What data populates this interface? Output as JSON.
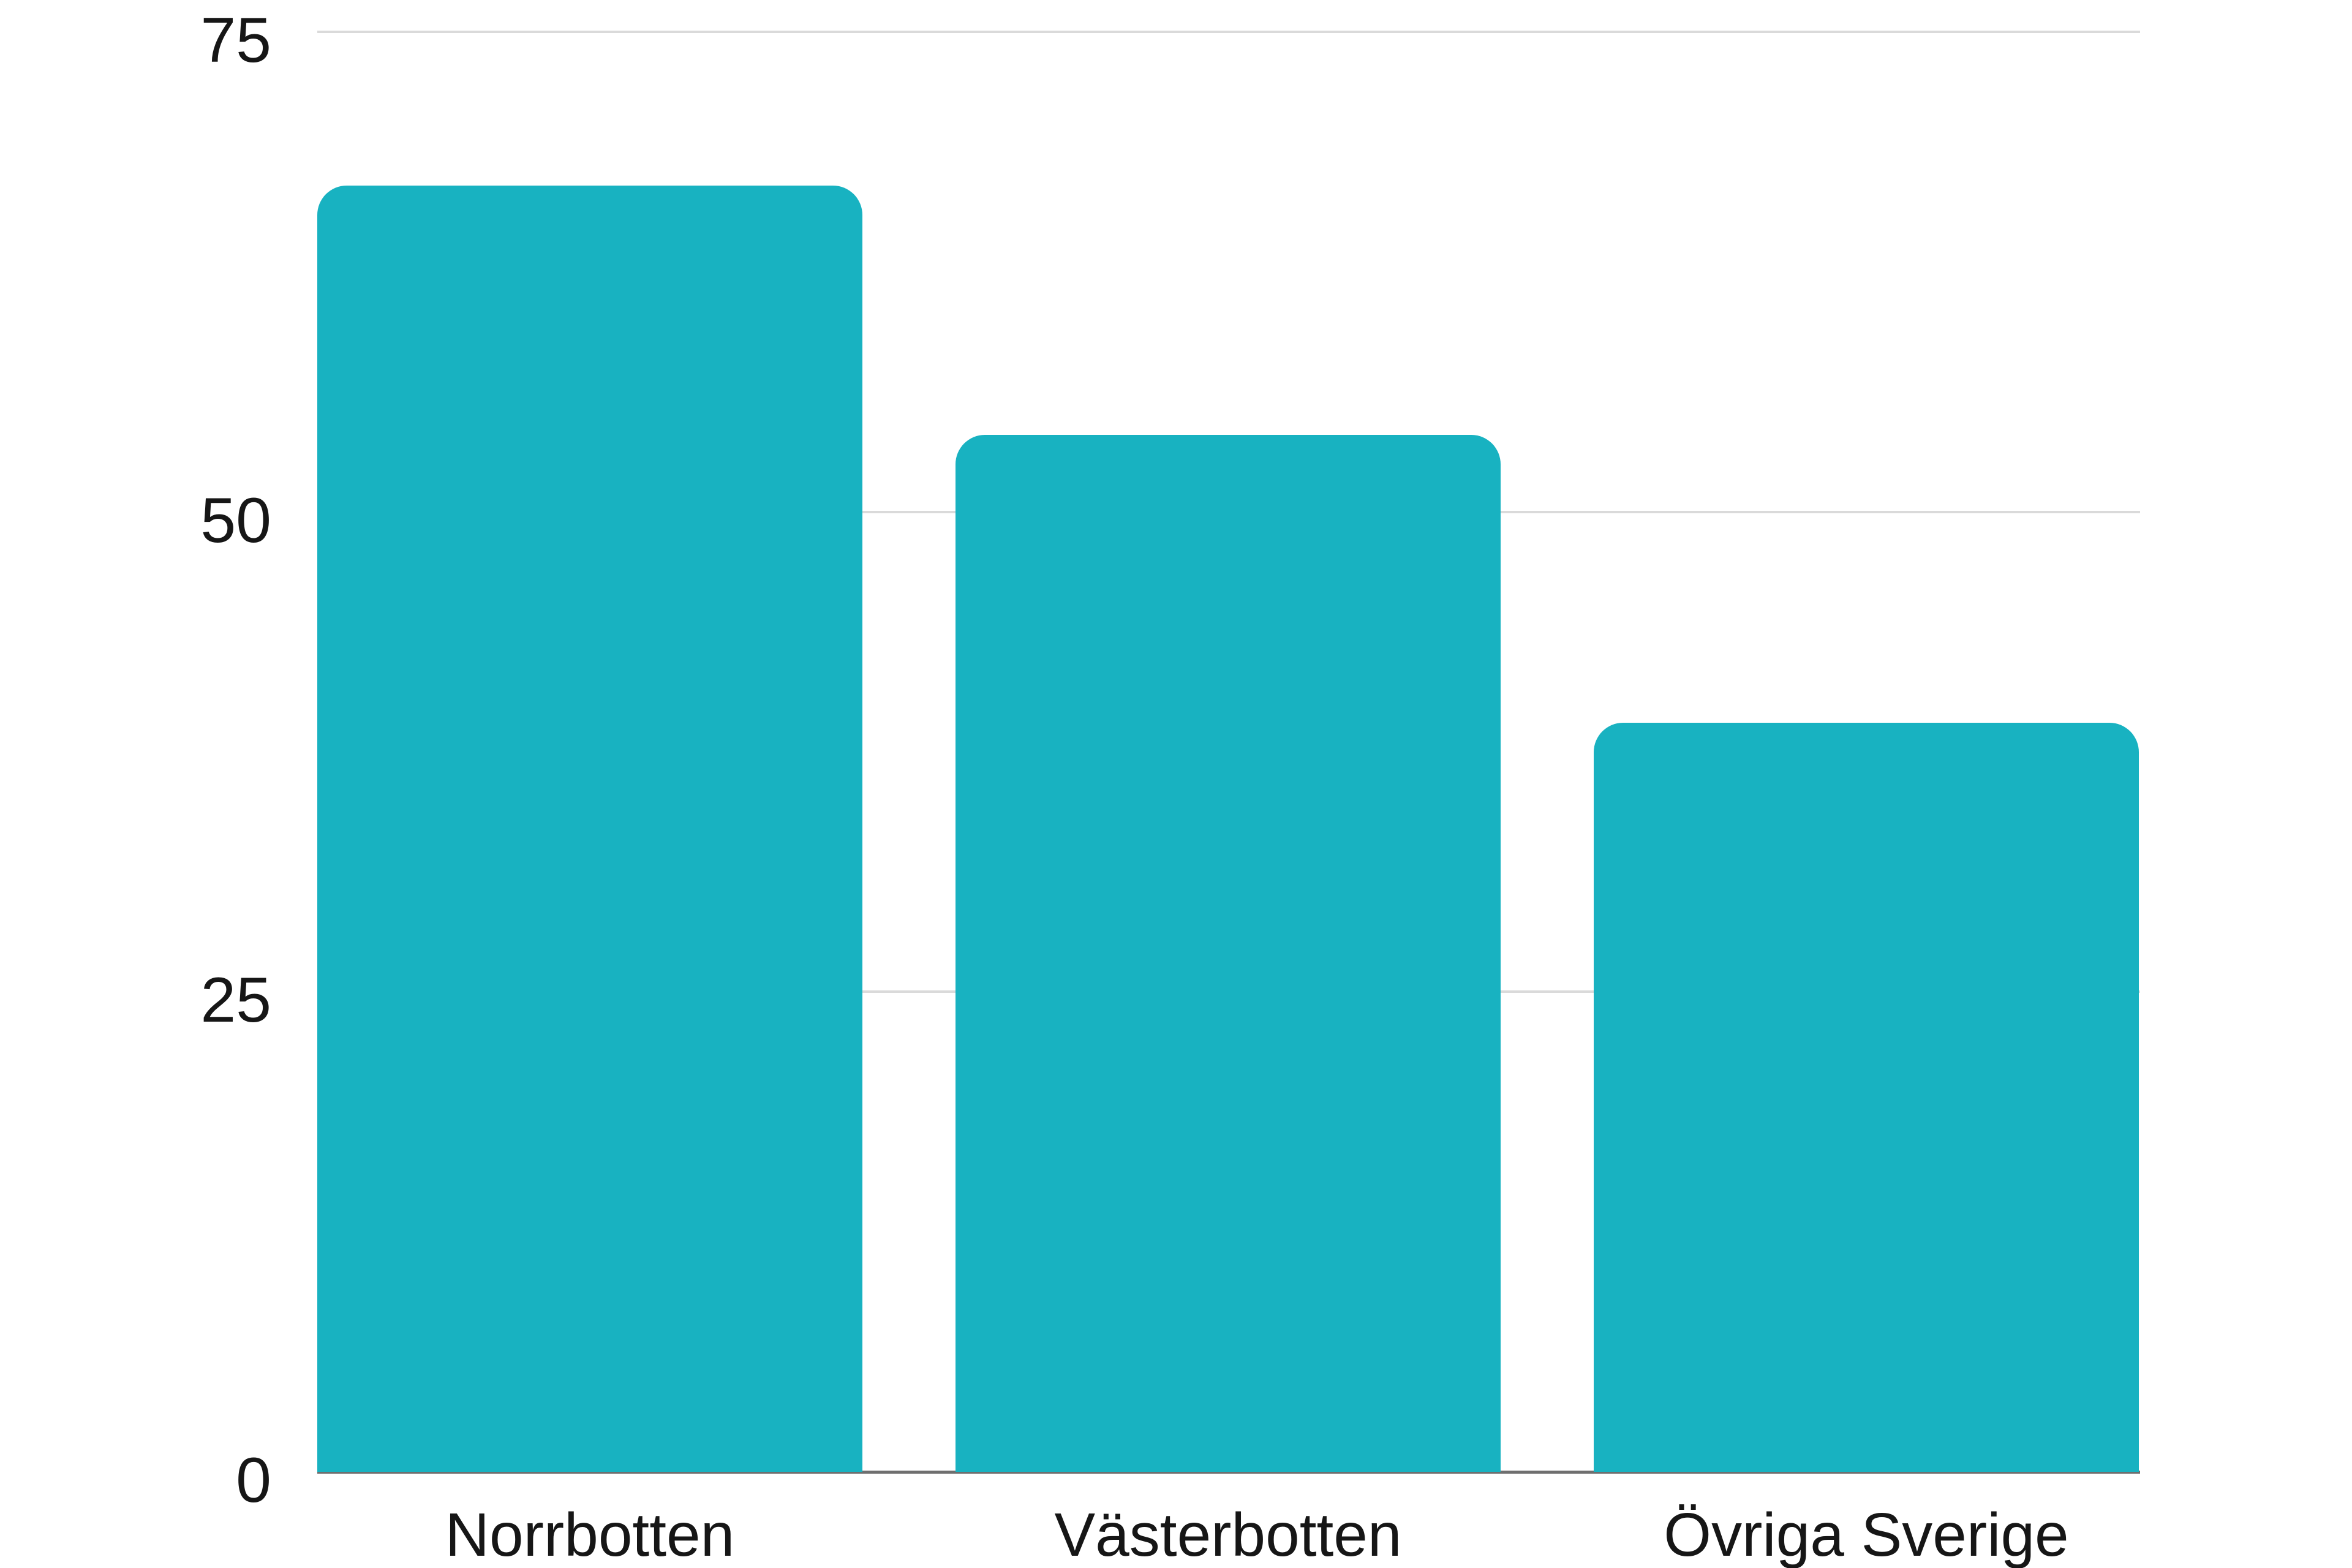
{
  "chart_data": {
    "type": "bar",
    "title": "",
    "xlabel": "",
    "ylabel": "",
    "categories": [
      "Norrbotten",
      "Västerbotten",
      "Övriga Sverige"
    ],
    "values": [
      67,
      54,
      39
    ],
    "ylim": [
      0,
      75
    ],
    "yticks": [
      0,
      25,
      50,
      75
    ],
    "grid": true,
    "legend_position": "none",
    "colors": {
      "bar": "#18b2c1",
      "gridline": "#dadada",
      "zero_axis_line": "#6f6f6f",
      "tick_text": "#161616",
      "background": "#ffffff"
    }
  }
}
